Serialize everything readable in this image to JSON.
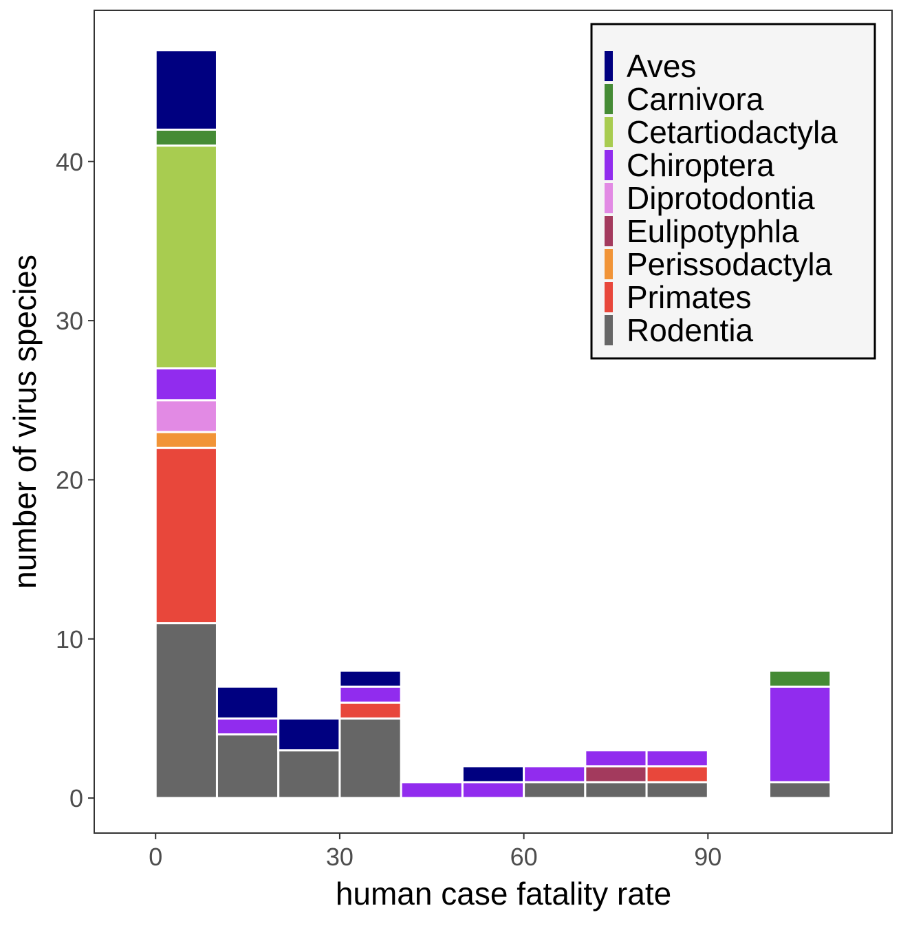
{
  "colors": {
    "Aves": "#000080",
    "Carnivora": "#458B35",
    "Cetartiodactyla": "#A8CC50",
    "Chiroptera": "#912CEE",
    "Diprotodontia": "#E28AE4",
    "Eulipotyphla": "#A33A5D",
    "Perissodactyla": "#F19437",
    "Primates": "#E8473B",
    "Rodentia": "#666666"
  },
  "chart_data": {
    "type": "bar",
    "subtype": "stacked-histogram",
    "title": "",
    "xlabel": "human case fatality rate",
    "ylabel": "number of virus species",
    "xlim": [
      -10,
      120
    ],
    "ylim": [
      -2.2,
      49.5
    ],
    "x_ticks": [
      0,
      30,
      60,
      90
    ],
    "x_tick_labels": [
      "0",
      "30",
      "60",
      "90"
    ],
    "y_ticks": [
      0,
      10,
      20,
      30,
      40
    ],
    "y_tick_labels": [
      "0",
      "10",
      "20",
      "30",
      "40"
    ],
    "bin_width": 10,
    "bin_starts": [
      0,
      10,
      20,
      30,
      40,
      50,
      60,
      70,
      80,
      90,
      100
    ],
    "stack_order_bottom_to_top": [
      "Rodentia",
      "Primates",
      "Perissodactyla",
      "Eulipotyphla",
      "Diprotodontia",
      "Chiroptera",
      "Cetartiodactyla",
      "Carnivora",
      "Aves"
    ],
    "series": [
      {
        "name": "Aves",
        "values": [
          5,
          2,
          2,
          1,
          0,
          1,
          0,
          0,
          0,
          0,
          0
        ]
      },
      {
        "name": "Carnivora",
        "values": [
          1,
          0,
          0,
          0,
          0,
          0,
          0,
          0,
          0,
          0,
          1
        ]
      },
      {
        "name": "Cetartiodactyla",
        "values": [
          14,
          0,
          0,
          0,
          0,
          0,
          0,
          0,
          0,
          0,
          0
        ]
      },
      {
        "name": "Chiroptera",
        "values": [
          2,
          1,
          0,
          1,
          1,
          1,
          1,
          1,
          1,
          0,
          6
        ]
      },
      {
        "name": "Diprotodontia",
        "values": [
          2,
          0,
          0,
          0,
          0,
          0,
          0,
          0,
          0,
          0,
          0
        ]
      },
      {
        "name": "Eulipotyphla",
        "values": [
          0,
          0,
          0,
          0,
          0,
          0,
          0,
          1,
          0,
          0,
          0
        ]
      },
      {
        "name": "Perissodactyla",
        "values": [
          1,
          0,
          0,
          0,
          0,
          0,
          0,
          0,
          0,
          0,
          0
        ]
      },
      {
        "name": "Primates",
        "values": [
          11,
          0,
          0,
          1,
          0,
          0,
          0,
          0,
          1,
          0,
          0
        ]
      },
      {
        "name": "Rodentia",
        "values": [
          11,
          4,
          3,
          5,
          0,
          0,
          1,
          1,
          1,
          0,
          1
        ]
      }
    ],
    "grid": false,
    "legend": {
      "position": "top-right",
      "entries": [
        "Aves",
        "Carnivora",
        "Cetartiodactyla",
        "Chiroptera",
        "Diprotodontia",
        "Eulipotyphla",
        "Perissodactyla",
        "Primates",
        "Rodentia"
      ]
    }
  }
}
